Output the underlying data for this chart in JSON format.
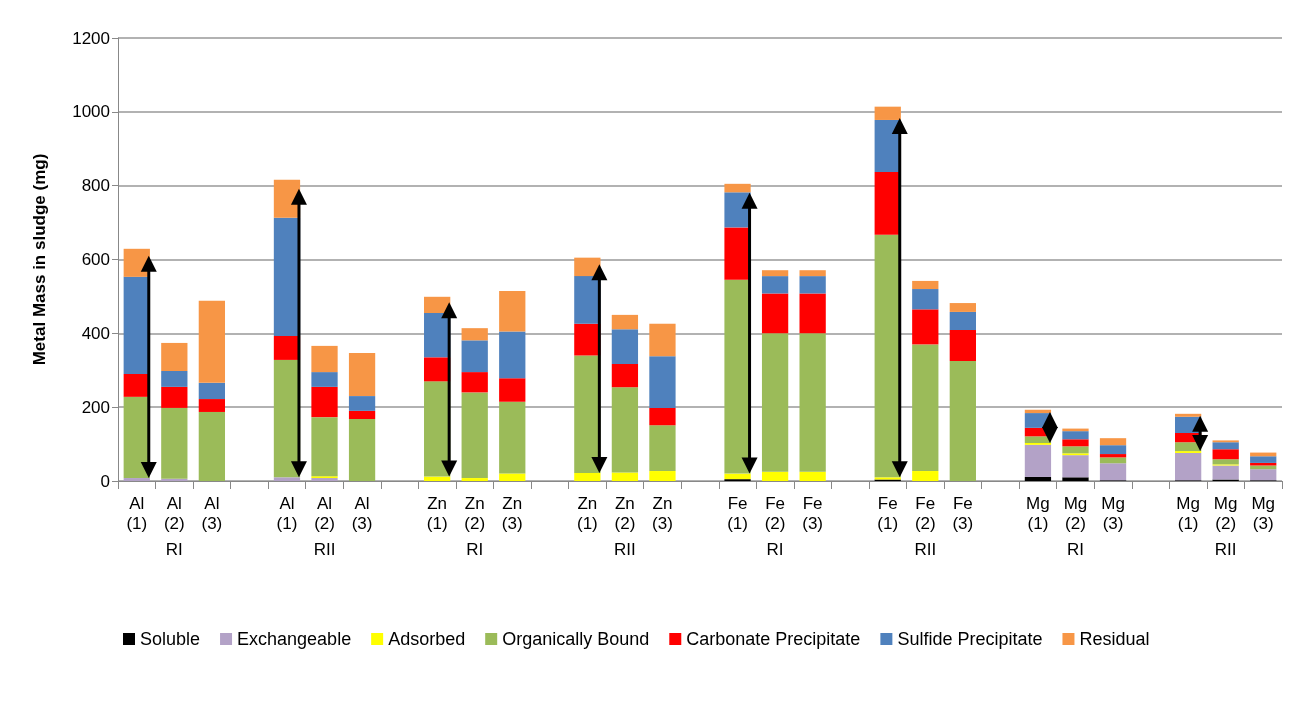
{
  "chart_data": {
    "type": "bar",
    "stacked": true,
    "ylabel": "Metal Mass in sludge (mg)",
    "ylim": [
      0,
      1200
    ],
    "yticks": [
      0,
      200,
      400,
      600,
      800,
      1000,
      1200
    ],
    "grid": "y",
    "legend": "bottom",
    "categories": [
      "Al (1)",
      "Al (2)",
      "Al (3)",
      null,
      "Al (1)",
      "Al (2)",
      "Al (3)",
      null,
      "Zn (1)",
      "Zn (2)",
      "Zn (3)",
      null,
      "Zn (1)",
      "Zn (2)",
      "Zn (3)",
      null,
      "Fe (1)",
      "Fe (2)",
      "Fe (3)",
      null,
      "Fe (1)",
      "Fe (2)",
      "Fe (3)",
      null,
      "Mg (1)",
      "Mg (2)",
      "Mg (3)",
      null,
      "Mg (1)",
      "Mg (2)",
      "Mg (3)"
    ],
    "annotations": [
      "RI",
      "RII",
      "RI",
      "RII",
      "RI",
      "RII",
      "RI",
      "RII"
    ],
    "series": [
      {
        "name": "Soluble",
        "color": "#000000",
        "values": [
          0,
          0,
          0,
          null,
          0,
          0,
          0,
          null,
          0,
          0,
          0,
          null,
          0,
          0,
          0,
          null,
          5,
          0,
          0,
          null,
          4,
          0,
          0,
          null,
          11,
          10,
          2,
          null,
          2,
          4,
          2
        ]
      },
      {
        "name": "Exchangeable",
        "color": "#b3a2c7",
        "values": [
          8,
          6,
          0,
          null,
          10,
          8,
          0,
          null,
          0,
          null,
          0,
          null,
          0,
          0,
          0,
          null,
          0,
          0,
          0,
          null,
          0,
          0,
          0,
          null,
          87,
          60,
          46,
          null,
          74,
          38,
          30
        ]
      },
      {
        "name": "Adsorbed",
        "color": "#ffff00",
        "values": [
          0,
          0,
          0,
          null,
          0,
          5,
          0,
          null,
          12,
          8,
          20,
          null,
          22,
          23,
          27,
          null,
          15,
          25,
          25,
          null,
          6,
          27,
          0,
          null,
          5,
          5,
          0,
          null,
          5,
          3,
          0
        ]
      },
      {
        "name": "Organically Bound",
        "color": "#9bbb59",
        "values": [
          220,
          192,
          187,
          null,
          318,
          160,
          168,
          null,
          258,
          232,
          195,
          null,
          318,
          231,
          124,
          null,
          525,
          375,
          375,
          null,
          657,
          343,
          325,
          null,
          18,
          19,
          16,
          null,
          24,
          14,
          10
        ]
      },
      {
        "name": "Carbonate Precipitate",
        "color": "#ff0000",
        "values": [
          62,
          57,
          35,
          null,
          65,
          82,
          22,
          null,
          65,
          55,
          63,
          null,
          86,
          63,
          47,
          null,
          142,
          108,
          108,
          null,
          170,
          95,
          84,
          null,
          23,
          19,
          9,
          null,
          25,
          27,
          7
        ]
      },
      {
        "name": "Sulfide Precipitate",
        "color": "#4f81bd",
        "values": [
          263,
          43,
          44,
          null,
          320,
          40,
          40,
          null,
          120,
          86,
          127,
          null,
          129,
          94,
          140,
          null,
          95,
          47,
          47,
          null,
          141,
          55,
          49,
          null,
          40,
          22,
          24,
          null,
          44,
          19,
          18
        ]
      },
      {
        "name": "Residual",
        "color": "#f79646",
        "values": [
          76,
          76,
          222,
          null,
          103,
          71,
          117,
          null,
          44,
          33,
          110,
          null,
          50,
          39,
          88,
          null,
          23,
          16,
          16,
          null,
          36,
          22,
          24,
          null,
          9,
          7,
          19,
          null,
          8,
          5,
          10
        ]
      }
    ]
  }
}
